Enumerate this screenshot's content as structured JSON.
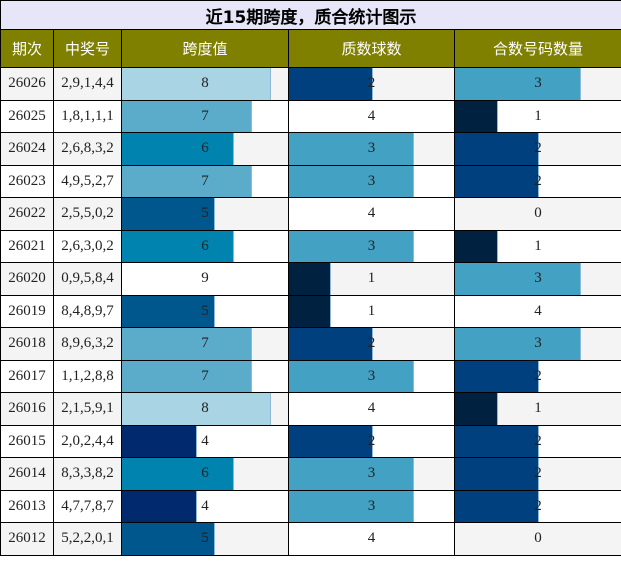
{
  "title": "近15期跨度，质合统计图示",
  "headers": [
    "期次",
    "中奖号",
    "跨度值",
    "质数球数",
    "合数号码数量"
  ],
  "colors": {
    "title_bg": "#e6e6f8",
    "header_bg": "#808000",
    "row_alt": "#f4f4f4",
    "row_base": "#ffffff",
    "span": {
      "4": "#00296e",
      "5": "#00578e",
      "6": "#0083ae",
      "7": "#5aacca",
      "8": "#a9d4e3"
    },
    "count": {
      "1": "#00213f",
      "2": "#00407f",
      "3": "#43a1c3"
    }
  },
  "chart_data": {
    "type": "table",
    "title": "近15期跨度，质合统计图示",
    "columns": [
      "期次",
      "中奖号",
      "跨度值",
      "质数球数",
      "合数号码数量"
    ],
    "span_max": 9,
    "count_max": 4,
    "rows": [
      {
        "issue": "26026",
        "numbers": "2,9,1,4,4",
        "span": 8,
        "prime": 2,
        "composite": 3
      },
      {
        "issue": "26025",
        "numbers": "1,8,1,1,1",
        "span": 7,
        "prime": 4,
        "composite": 1
      },
      {
        "issue": "26024",
        "numbers": "2,6,8,3,2",
        "span": 6,
        "prime": 3,
        "composite": 2
      },
      {
        "issue": "26023",
        "numbers": "4,9,5,2,7",
        "span": 7,
        "prime": 3,
        "composite": 2
      },
      {
        "issue": "26022",
        "numbers": "2,5,5,0,2",
        "span": 5,
        "prime": 4,
        "composite": 0
      },
      {
        "issue": "26021",
        "numbers": "2,6,3,0,2",
        "span": 6,
        "prime": 3,
        "composite": 1
      },
      {
        "issue": "26020",
        "numbers": "0,9,5,8,4",
        "span": 9,
        "prime": 1,
        "composite": 3
      },
      {
        "issue": "26019",
        "numbers": "8,4,8,9,7",
        "span": 5,
        "prime": 1,
        "composite": 4
      },
      {
        "issue": "26018",
        "numbers": "8,9,6,3,2",
        "span": 7,
        "prime": 2,
        "composite": 3
      },
      {
        "issue": "26017",
        "numbers": "1,1,2,8,8",
        "span": 7,
        "prime": 3,
        "composite": 2
      },
      {
        "issue": "26016",
        "numbers": "2,1,5,9,1",
        "span": 8,
        "prime": 4,
        "composite": 1
      },
      {
        "issue": "26015",
        "numbers": "2,0,2,4,4",
        "span": 4,
        "prime": 2,
        "composite": 2
      },
      {
        "issue": "26014",
        "numbers": "8,3,3,8,2",
        "span": 6,
        "prime": 3,
        "composite": 2
      },
      {
        "issue": "26013",
        "numbers": "4,7,7,8,7",
        "span": 4,
        "prime": 3,
        "composite": 2
      },
      {
        "issue": "26012",
        "numbers": "5,2,2,0,1",
        "span": 5,
        "prime": 4,
        "composite": 0
      }
    ]
  }
}
